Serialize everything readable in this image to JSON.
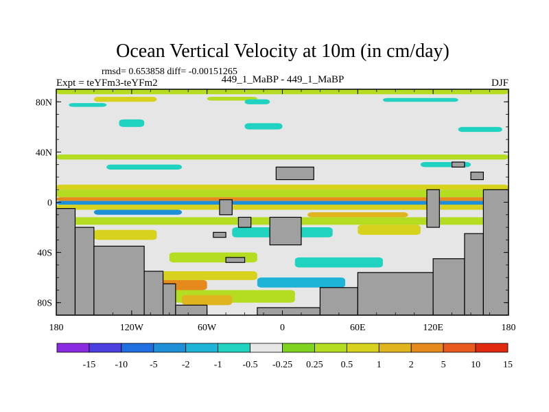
{
  "chart_data": {
    "type": "heatmap",
    "title": "Ocean Vertical Velocity at 10m (in cm/day)",
    "stats": "rmsd= 0.653858 diff= -0.00151265",
    "experiment": "Expt = teYFm3-teYFm2",
    "run_label": "449_1_MaBP - 449_1_MaBP",
    "season": "DJF",
    "x_range": [
      -180,
      180
    ],
    "y_range": [
      -90,
      90
    ],
    "x_ticks": [
      {
        "value": -180,
        "label": "180"
      },
      {
        "value": -120,
        "label": "120W"
      },
      {
        "value": -60,
        "label": "60W"
      },
      {
        "value": 0,
        "label": "0"
      },
      {
        "value": 60,
        "label": "60E"
      },
      {
        "value": 120,
        "label": "120E"
      },
      {
        "value": 180,
        "label": "180"
      }
    ],
    "y_ticks": [
      {
        "value": 80,
        "label": "80N"
      },
      {
        "value": 40,
        "label": "40N"
      },
      {
        "value": 0,
        "label": "0"
      },
      {
        "value": -40,
        "label": "40S"
      },
      {
        "value": -80,
        "label": "80S"
      }
    ],
    "colorbar": {
      "levels": [
        "-15",
        "-10",
        "-5",
        "-2",
        "-1",
        "-0.5",
        "-0.25",
        "0.25",
        "0.5",
        "1",
        "2",
        "5",
        "10",
        "15"
      ],
      "colors": [
        "#8a2be2",
        "#4b3fe0",
        "#1f6fe0",
        "#1e90d8",
        "#1eb4d8",
        "#20d2c0",
        "#e6e6e6",
        "#7ed321",
        "#b4dc20",
        "#d6d21e",
        "#e0b41e",
        "#e68a1e",
        "#e85a1e",
        "#e02a10"
      ]
    },
    "land_color": "#a0a0a0",
    "fields": [
      {
        "lon": [
          -180,
          180
        ],
        "lat": [
          90,
          86
        ],
        "level": "0.5"
      },
      {
        "lon": [
          -150,
          -100
        ],
        "lat": [
          84,
          80
        ],
        "level": "1"
      },
      {
        "lon": [
          -60,
          -20
        ],
        "lat": [
          84,
          81
        ],
        "level": "0.5"
      },
      {
        "lon": [
          80,
          140
        ],
        "lat": [
          83,
          80
        ],
        "level": "-0.5"
      },
      {
        "lon": [
          -170,
          -140
        ],
        "lat": [
          79,
          76
        ],
        "level": "-0.5"
      },
      {
        "lon": [
          -130,
          -110
        ],
        "lat": [
          66,
          60
        ],
        "level": "-0.5"
      },
      {
        "lon": [
          -30,
          0
        ],
        "lat": [
          63,
          58
        ],
        "level": "-0.5"
      },
      {
        "lon": [
          140,
          175
        ],
        "lat": [
          60,
          56
        ],
        "level": "-0.5"
      },
      {
        "lon": [
          -30,
          -10
        ],
        "lat": [
          82,
          78
        ],
        "level": "-0.5"
      },
      {
        "lon": [
          -180,
          180
        ],
        "lat": [
          38,
          34
        ],
        "level": "0.5"
      },
      {
        "lon": [
          -140,
          -80
        ],
        "lat": [
          30,
          26
        ],
        "level": "-0.5"
      },
      {
        "lon": [
          110,
          150
        ],
        "lat": [
          32,
          28
        ],
        "level": "-0.5"
      },
      {
        "lon": [
          -180,
          180
        ],
        "lat": [
          14,
          10
        ],
        "level": "1"
      },
      {
        "lon": [
          -180,
          180
        ],
        "lat": [
          10,
          4
        ],
        "level": "0.5"
      },
      {
        "lon": [
          -180,
          180
        ],
        "lat": [
          4,
          1
        ],
        "level": "5"
      },
      {
        "lon": [
          -180,
          180
        ],
        "lat": [
          1,
          -2
        ],
        "level": "-2"
      },
      {
        "lon": [
          -180,
          180
        ],
        "lat": [
          -2,
          -6
        ],
        "level": "1"
      },
      {
        "lon": [
          -150,
          -80
        ],
        "lat": [
          -6,
          -10
        ],
        "level": "-2"
      },
      {
        "lon": [
          20,
          100
        ],
        "lat": [
          -8,
          -12
        ],
        "level": "2"
      },
      {
        "lon": [
          -180,
          180
        ],
        "lat": [
          -12,
          -18
        ],
        "level": "0.5"
      },
      {
        "lon": [
          -150,
          -100
        ],
        "lat": [
          -22,
          -30
        ],
        "level": "1"
      },
      {
        "lon": [
          -40,
          40
        ],
        "lat": [
          -20,
          -28
        ],
        "level": "-0.5"
      },
      {
        "lon": [
          60,
          110
        ],
        "lat": [
          -18,
          -26
        ],
        "level": "1"
      },
      {
        "lon": [
          -90,
          -20
        ],
        "lat": [
          -40,
          -48
        ],
        "level": "0.5"
      },
      {
        "lon": [
          10,
          80
        ],
        "lat": [
          -44,
          -52
        ],
        "level": "-0.5"
      },
      {
        "lon": [
          -110,
          -20
        ],
        "lat": [
          -55,
          -62
        ],
        "level": "1"
      },
      {
        "lon": [
          -100,
          -60
        ],
        "lat": [
          -62,
          -70
        ],
        "level": "5"
      },
      {
        "lon": [
          -20,
          50
        ],
        "lat": [
          -60,
          -68
        ],
        "level": "-1"
      },
      {
        "lon": [
          -110,
          10
        ],
        "lat": [
          -70,
          -80
        ],
        "level": "0.5"
      },
      {
        "lon": [
          -80,
          -40
        ],
        "lat": [
          -74,
          -82
        ],
        "level": "2"
      }
    ],
    "land": [
      {
        "lon": [
          -180,
          -165
        ],
        "lat": [
          -5,
          -90
        ]
      },
      {
        "lon": [
          -165,
          -150
        ],
        "lat": [
          -20,
          -90
        ]
      },
      {
        "lon": [
          -150,
          -110
        ],
        "lat": [
          -35,
          -90
        ]
      },
      {
        "lon": [
          -110,
          -95
        ],
        "lat": [
          -55,
          -90
        ]
      },
      {
        "lon": [
          -95,
          -85
        ],
        "lat": [
          -65,
          -90
        ]
      },
      {
        "lon": [
          -85,
          -60
        ],
        "lat": [
          -82,
          -90
        ]
      },
      {
        "lon": [
          -20,
          30
        ],
        "lat": [
          -84,
          -90
        ]
      },
      {
        "lon": [
          30,
          60
        ],
        "lat": [
          -68,
          -90
        ]
      },
      {
        "lon": [
          60,
          120
        ],
        "lat": [
          -56,
          -90
        ]
      },
      {
        "lon": [
          120,
          145
        ],
        "lat": [
          -45,
          -90
        ]
      },
      {
        "lon": [
          145,
          160
        ],
        "lat": [
          -25,
          -90
        ]
      },
      {
        "lon": [
          160,
          180
        ],
        "lat": [
          10,
          -90
        ]
      },
      {
        "lon": [
          -50,
          -40
        ],
        "lat": [
          2,
          -10
        ]
      },
      {
        "lon": [
          -35,
          -25
        ],
        "lat": [
          -12,
          -20
        ]
      },
      {
        "lon": [
          -55,
          -45
        ],
        "lat": [
          -24,
          -28
        ]
      },
      {
        "lon": [
          -45,
          -30
        ],
        "lat": [
          -44,
          -48
        ]
      },
      {
        "lon": [
          -10,
          15
        ],
        "lat": [
          -12,
          -34
        ]
      },
      {
        "lon": [
          -5,
          25
        ],
        "lat": [
          28,
          18
        ]
      },
      {
        "lon": [
          115,
          125
        ],
        "lat": [
          10,
          -20
        ]
      },
      {
        "lon": [
          150,
          160
        ],
        "lat": [
          24,
          18
        ]
      },
      {
        "lon": [
          135,
          145
        ],
        "lat": [
          32,
          28
        ]
      }
    ]
  }
}
